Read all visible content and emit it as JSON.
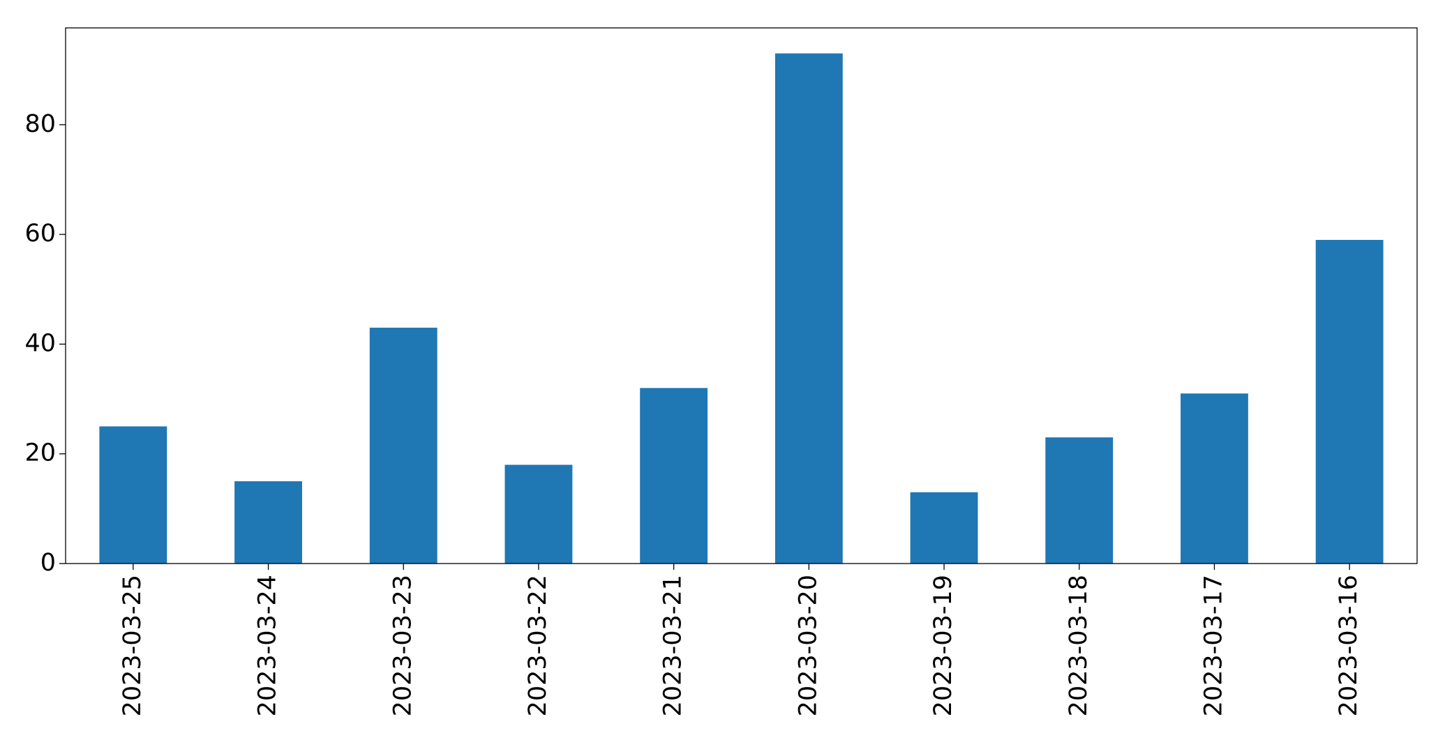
{
  "chart_data": {
    "type": "bar",
    "categories": [
      "2023-03-25",
      "2023-03-24",
      "2023-03-23",
      "2023-03-22",
      "2023-03-21",
      "2023-03-20",
      "2023-03-19",
      "2023-03-18",
      "2023-03-17",
      "2023-03-16"
    ],
    "values": [
      25,
      15,
      43,
      18,
      32,
      93,
      13,
      23,
      31,
      59
    ],
    "color": "#1f77b4",
    "ylim": [
      0,
      97.65
    ],
    "yticks": [
      0,
      20,
      40,
      60,
      80
    ],
    "grid": false
  }
}
